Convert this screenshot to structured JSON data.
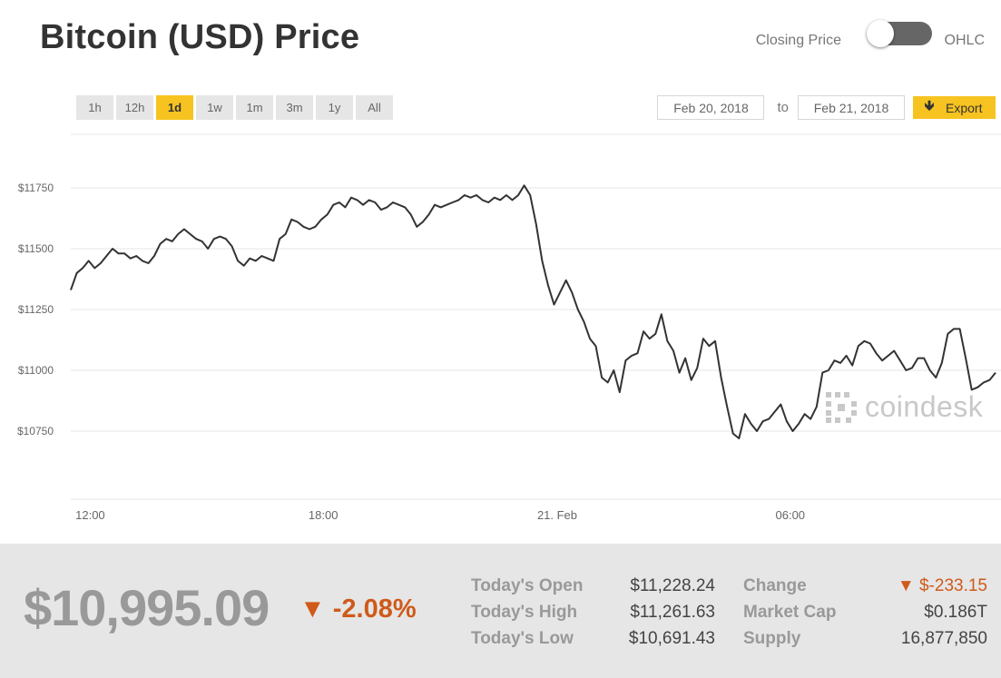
{
  "title": "Bitcoin (USD) Price",
  "toggle": {
    "left_label": "Closing Price",
    "right_label": "OHLC"
  },
  "range_buttons": [
    "1h",
    "12h",
    "1d",
    "1w",
    "1m",
    "3m",
    "1y",
    "All"
  ],
  "active_range": "1d",
  "dates": {
    "from": "Feb 20, 2018",
    "to_label": "to",
    "to": "Feb 21, 2018"
  },
  "export_label": "Export",
  "watermark": "coindesk",
  "colors": {
    "accent": "#f7c320",
    "negative": "#cf5a1a",
    "line": "#333333",
    "footer_bg": "#e6e6e6"
  },
  "summary": {
    "price": "$10,995.09",
    "change_pct": "▼ -2.08%",
    "today_open_label": "Today's Open",
    "today_open": "$11,228.24",
    "today_high_label": "Today's High",
    "today_high": "$11,261.63",
    "today_low_label": "Today's Low",
    "today_low": "$10,691.43",
    "change_label": "Change",
    "change": "▼ $-233.15",
    "market_cap_label": "Market Cap",
    "market_cap": "$0.186T",
    "supply_label": "Supply",
    "supply": "16,877,850"
  },
  "chart_data": {
    "type": "line",
    "series": [
      {
        "values": [
          11330,
          11400,
          11420,
          11450,
          11420,
          11440,
          11470,
          11500,
          11480,
          11480,
          11460,
          11470,
          11450,
          11440,
          11470,
          11520,
          11540,
          11530,
          11560,
          11580,
          11560,
          11540,
          11530,
          11500,
          11540,
          11550,
          11540,
          11510,
          11450,
          11430,
          11460,
          11450,
          11470,
          11460,
          11450,
          11540,
          11560,
          11620,
          11610,
          11590,
          11580,
          11590,
          11620,
          11640,
          11680,
          11690,
          11670,
          11710,
          11700,
          11680,
          11700,
          11690,
          11660,
          11670,
          11690,
          11680,
          11670,
          11640,
          11590,
          11610,
          11640,
          11680,
          11670,
          11680,
          11690,
          11700,
          11720,
          11710,
          11720,
          11700,
          11690,
          11710,
          11700,
          11720,
          11700,
          11720,
          11760,
          11720,
          11600,
          11450,
          11350,
          11270,
          11320,
          11370,
          11320,
          11250,
          11200,
          11130,
          11100,
          10970,
          10950,
          11000,
          10910,
          11040,
          11060,
          11070,
          11160,
          11130,
          11150,
          11230,
          11120,
          11080,
          10990,
          11050,
          10960,
          11010,
          11130,
          11100,
          11120,
          10970,
          10850,
          10740,
          10720,
          10820,
          10780,
          10750,
          10790,
          10800,
          10830,
          10860,
          10790,
          10750,
          10780,
          10820,
          10800,
          10850,
          10990,
          11000,
          11040,
          11030,
          11060,
          11020,
          11100,
          11120,
          11110,
          11070,
          11040,
          11060,
          11080,
          11040,
          11000,
          11010,
          11050,
          11050,
          11000,
          10970,
          11030,
          11150,
          11170,
          11170,
          11050,
          10920,
          10930,
          10950,
          10960,
          10990
        ]
      }
    ],
    "x_tick_labels": [
      "12:00",
      "18:00",
      "21. Feb",
      "06:00"
    ],
    "x_tick_fractions": [
      0.021,
      0.273,
      0.526,
      0.778
    ],
    "y_ticks": [
      10750,
      11000,
      11250,
      11500,
      11750
    ],
    "y_tick_labels": [
      "$10750",
      "$11000",
      "$11250",
      "$11500",
      "$11750"
    ],
    "ylim": [
      10470,
      11970
    ],
    "grid": true
  }
}
